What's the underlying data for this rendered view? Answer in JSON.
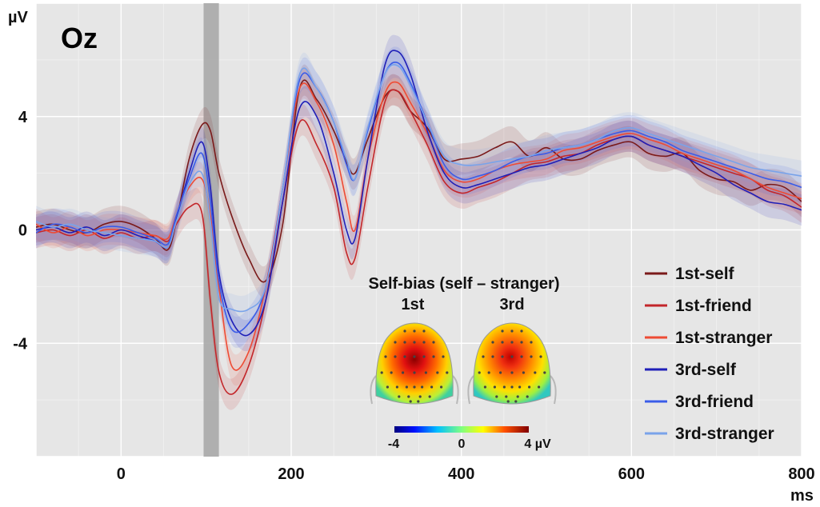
{
  "chart_data": {
    "type": "line",
    "title": "Oz",
    "ylabel": "µV",
    "xlabel": "ms",
    "xlim": [
      -100,
      800
    ],
    "ylim": [
      -8,
      8
    ],
    "x_ticks": [
      0,
      200,
      400,
      600,
      800
    ],
    "y_ticks": [
      4,
      0,
      -4
    ],
    "x_tick_labels": [
      "0",
      "200",
      "400",
      "600",
      "800"
    ],
    "y_tick_labels": [
      "4",
      "0",
      "-4"
    ],
    "grid": true,
    "legend_position": "bottom-right",
    "highlight_window": [
      97,
      115
    ],
    "x": [
      -100,
      -80,
      -60,
      -40,
      -20,
      0,
      20,
      40,
      55,
      65,
      80,
      95,
      105,
      115,
      130,
      150,
      170,
      190,
      210,
      230,
      250,
      265,
      275,
      290,
      310,
      325,
      340,
      360,
      380,
      400,
      420,
      440,
      460,
      480,
      500,
      520,
      540,
      560,
      580,
      600,
      620,
      640,
      660,
      680,
      700,
      720,
      740,
      760,
      780,
      800
    ],
    "series": [
      {
        "name": "1st-self",
        "color": "#7a1a1a",
        "values": [
          0.1,
          0.2,
          0.0,
          -0.1,
          0.2,
          0.3,
          0.1,
          -0.3,
          -0.7,
          0.3,
          2.5,
          3.7,
          3.5,
          2.0,
          0.5,
          -1.0,
          -1.8,
          0.2,
          5.0,
          4.6,
          3.5,
          2.4,
          2.0,
          3.2,
          4.7,
          4.9,
          4.2,
          3.6,
          2.5,
          2.5,
          2.6,
          2.9,
          3.1,
          2.6,
          2.9,
          2.5,
          2.5,
          2.8,
          3.0,
          3.1,
          2.7,
          2.6,
          2.7,
          2.1,
          1.8,
          1.7,
          1.4,
          1.6,
          1.5,
          1.0
        ]
      },
      {
        "name": "1st-friend",
        "color": "#c3262a",
        "values": [
          -0.1,
          0.0,
          -0.2,
          0.0,
          -0.3,
          -0.1,
          -0.3,
          -0.2,
          -0.4,
          0.2,
          0.8,
          0.6,
          -2.5,
          -5.0,
          -5.8,
          -4.8,
          -2.5,
          1.0,
          3.8,
          3.0,
          1.5,
          -0.8,
          -1.0,
          1.5,
          4.5,
          4.9,
          4.2,
          3.0,
          1.7,
          1.3,
          1.5,
          1.7,
          2.0,
          2.3,
          2.4,
          2.6,
          2.7,
          3.0,
          3.2,
          3.3,
          3.0,
          2.8,
          2.6,
          2.4,
          2.2,
          2.0,
          1.8,
          1.4,
          1.2,
          0.8
        ]
      },
      {
        "name": "1st-stranger",
        "color": "#ee4b34",
        "values": [
          0.2,
          -0.1,
          0.1,
          -0.2,
          0.0,
          0.0,
          -0.1,
          -0.2,
          -0.3,
          0.5,
          1.5,
          1.8,
          0.5,
          -2.0,
          -4.8,
          -4.3,
          -2.0,
          1.5,
          5.0,
          4.5,
          3.0,
          1.0,
          0.0,
          2.5,
          4.8,
          5.2,
          4.5,
          3.4,
          2.1,
          1.7,
          1.8,
          2.1,
          2.3,
          2.4,
          2.5,
          2.8,
          2.9,
          3.1,
          3.3,
          3.4,
          3.2,
          3.0,
          2.7,
          2.5,
          2.3,
          2.1,
          1.8,
          1.5,
          1.3,
          1.1
        ]
      },
      {
        "name": "3rd-self",
        "color": "#1f1fb8",
        "values": [
          0.0,
          0.1,
          -0.1,
          0.1,
          -0.2,
          0.0,
          -0.2,
          -0.4,
          -0.6,
          0.4,
          2.0,
          3.1,
          1.5,
          -1.5,
          -3.2,
          -3.7,
          -2.5,
          1.0,
          4.3,
          4.0,
          2.0,
          0.0,
          -0.3,
          2.5,
          5.8,
          6.3,
          5.5,
          3.5,
          2.0,
          1.5,
          1.6,
          1.8,
          2.0,
          2.2,
          2.3,
          2.5,
          2.7,
          2.9,
          3.2,
          3.3,
          3.0,
          2.8,
          2.6,
          2.3,
          2.0,
          1.6,
          1.3,
          1.0,
          0.9,
          0.7
        ]
      },
      {
        "name": "3rd-friend",
        "color": "#3a5ce8",
        "values": [
          -0.1,
          0.2,
          0.1,
          -0.1,
          0.1,
          0.1,
          -0.1,
          -0.3,
          -0.5,
          0.5,
          1.8,
          2.7,
          1.0,
          -1.8,
          -3.5,
          -3.3,
          -2.0,
          1.5,
          5.3,
          5.0,
          3.8,
          2.3,
          1.8,
          3.5,
          5.5,
          5.9,
          5.2,
          3.8,
          2.3,
          1.8,
          1.9,
          2.1,
          2.4,
          2.6,
          2.7,
          2.9,
          3.0,
          3.2,
          3.4,
          3.5,
          3.3,
          3.1,
          2.8,
          2.6,
          2.4,
          2.2,
          2.0,
          1.8,
          1.7,
          1.5
        ]
      },
      {
        "name": "3rd-stranger",
        "color": "#79a3ea",
        "values": [
          0.3,
          0.1,
          0.2,
          0.0,
          -0.1,
          -0.2,
          -0.3,
          -0.4,
          -0.6,
          0.3,
          1.6,
          2.0,
          0.3,
          -2.4,
          -2.8,
          -2.8,
          -2.0,
          1.5,
          5.5,
          5.0,
          3.8,
          2.5,
          1.8,
          3.6,
          5.5,
          5.8,
          5.1,
          3.8,
          2.6,
          2.3,
          2.3,
          2.4,
          2.5,
          2.6,
          2.8,
          2.9,
          3.0,
          3.2,
          3.5,
          3.6,
          3.4,
          3.2,
          3.0,
          2.8,
          2.6,
          2.4,
          2.2,
          2.1,
          2.0,
          1.9
        ]
      }
    ],
    "inset": {
      "title": "Self-bias (self – stranger)",
      "maps": [
        {
          "label": "1st"
        },
        {
          "label": "3rd"
        }
      ],
      "colorbar_ticks": [
        "-4",
        "0",
        "4 µV"
      ]
    }
  }
}
